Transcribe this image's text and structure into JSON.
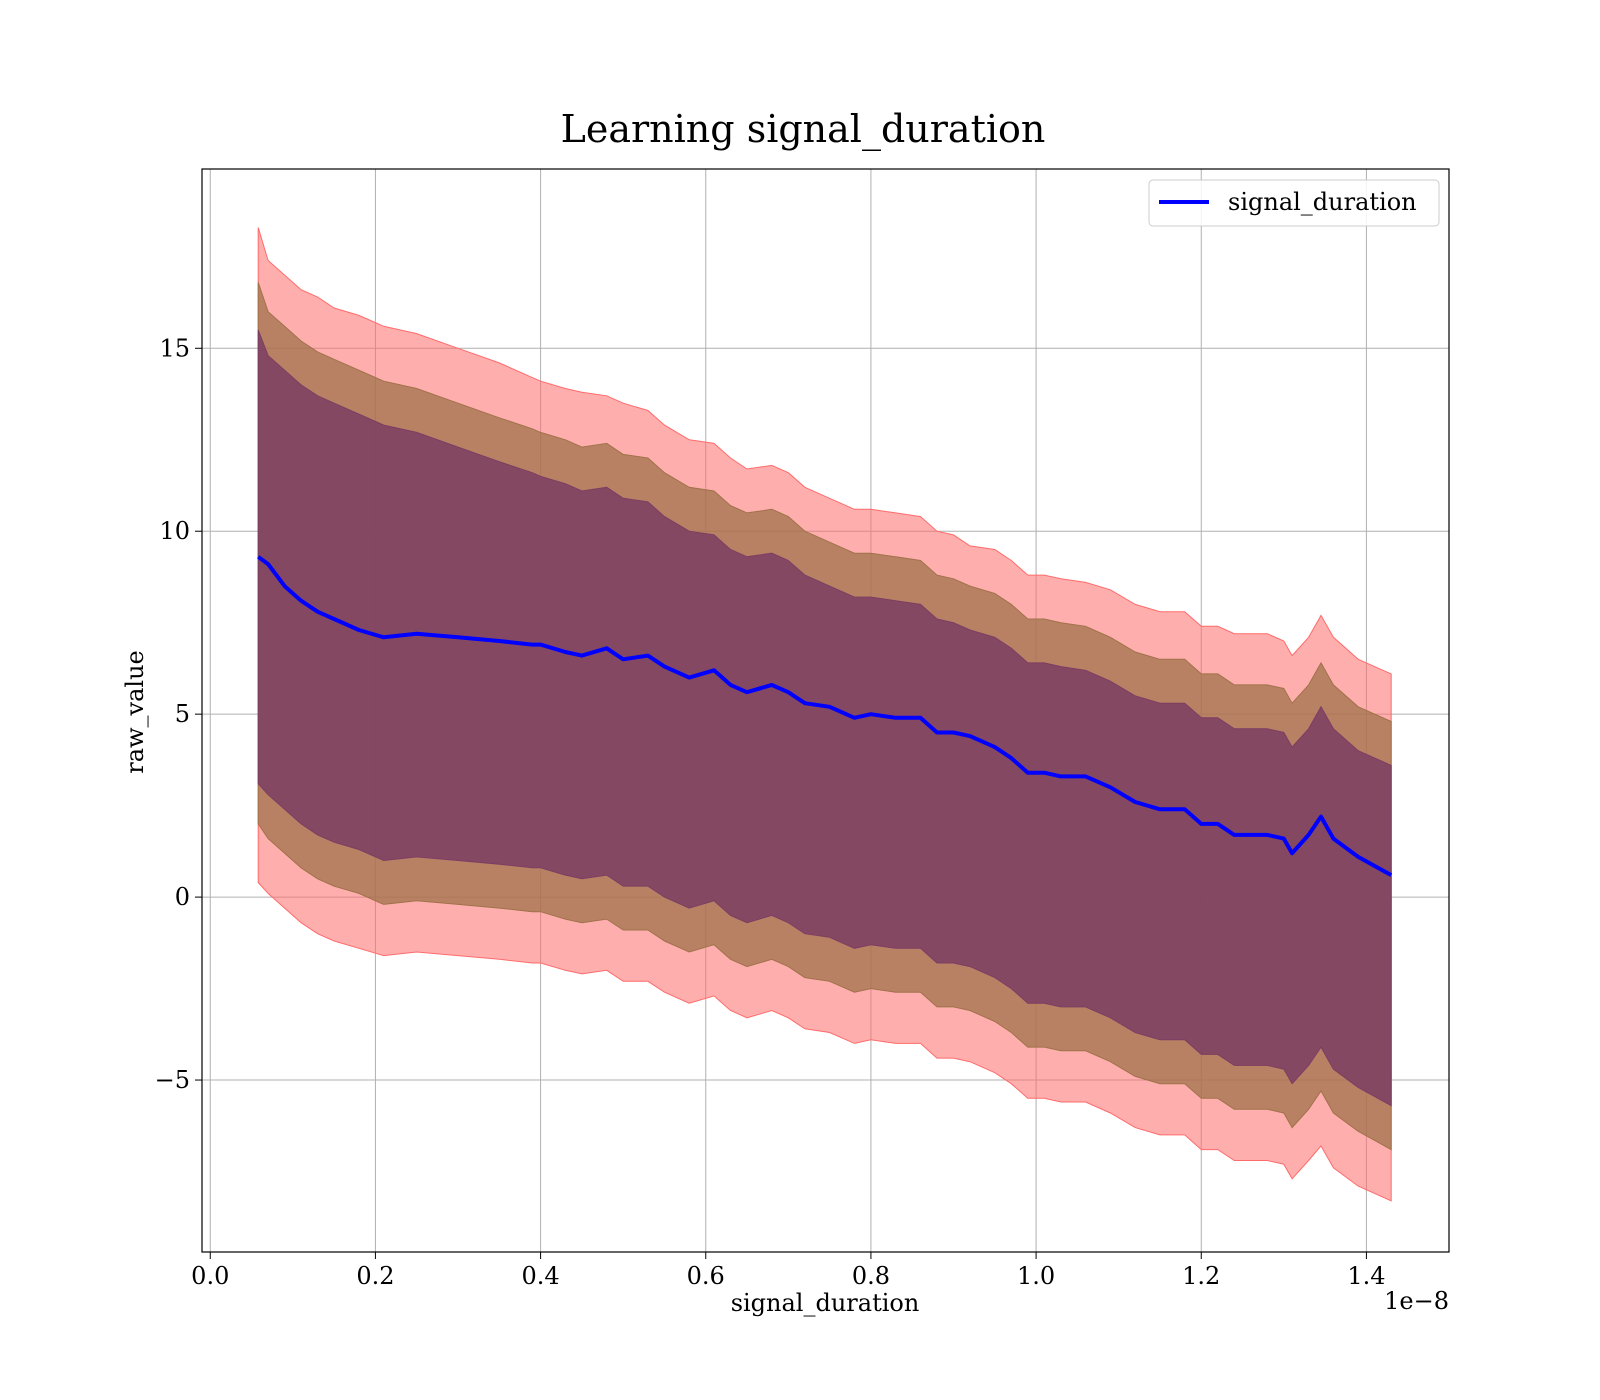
{
  "chart_data": {
    "type": "line",
    "title": "Learning signal_duration",
    "xlabel": "signal_duration",
    "ylabel": "raw_value",
    "x_offset_text": "1e−8",
    "x_scale_factor": 1e-08,
    "xlim": [
      -0.01,
      1.5
    ],
    "ylim": [
      -9.7,
      19.9
    ],
    "x_ticks": [
      0.0,
      0.2,
      0.4,
      0.6,
      0.8,
      1.0,
      1.2,
      1.4
    ],
    "x_tick_labels": [
      "0.0",
      "0.2",
      "0.4",
      "0.6",
      "0.8",
      "1.0",
      "1.2",
      "1.4"
    ],
    "y_ticks": [
      -5,
      0,
      5,
      10,
      15
    ],
    "y_tick_labels": [
      "−5",
      "0",
      "5",
      "10",
      "15"
    ],
    "grid": true,
    "legend_position": "top-right",
    "colors": {
      "line": "#0000ff",
      "band_outer": "#ff6b6b",
      "band_middle": "#a0724a",
      "band_inner": "#7b3e63"
    },
    "series": [
      {
        "name": "signal_duration",
        "x": [
          0.058,
          0.07,
          0.09,
          0.11,
          0.13,
          0.15,
          0.18,
          0.21,
          0.25,
          0.3,
          0.35,
          0.39,
          0.4,
          0.43,
          0.45,
          0.48,
          0.5,
          0.53,
          0.55,
          0.58,
          0.61,
          0.63,
          0.65,
          0.68,
          0.7,
          0.72,
          0.75,
          0.78,
          0.8,
          0.83,
          0.86,
          0.88,
          0.9,
          0.92,
          0.95,
          0.97,
          0.99,
          1.01,
          1.03,
          1.06,
          1.09,
          1.12,
          1.15,
          1.18,
          1.2,
          1.22,
          1.24,
          1.28,
          1.3,
          1.31,
          1.33,
          1.345,
          1.36,
          1.39,
          1.43
        ],
        "values": [
          9.3,
          9.1,
          8.5,
          8.1,
          7.8,
          7.6,
          7.3,
          7.1,
          7.2,
          7.1,
          7.0,
          6.9,
          6.9,
          6.7,
          6.6,
          6.8,
          6.5,
          6.6,
          6.3,
          6.0,
          6.2,
          5.8,
          5.6,
          5.8,
          5.6,
          5.3,
          5.2,
          4.9,
          5.0,
          4.9,
          4.9,
          4.5,
          4.5,
          4.4,
          4.1,
          3.8,
          3.4,
          3.4,
          3.3,
          3.3,
          3.0,
          2.6,
          2.4,
          2.4,
          2.0,
          2.0,
          1.7,
          1.7,
          1.6,
          1.2,
          1.7,
          2.2,
          1.6,
          1.1,
          0.6
        ]
      }
    ],
    "bands": [
      {
        "level": "outer",
        "upper": [
          18.3,
          17.4,
          17.0,
          16.6,
          16.4,
          16.1,
          15.9,
          15.6,
          15.4,
          15.0,
          14.6,
          14.2,
          14.1,
          13.9,
          13.8,
          13.7,
          13.5,
          13.3,
          12.9,
          12.5,
          12.4,
          12.0,
          11.7,
          11.8,
          11.6,
          11.2,
          10.9,
          10.6,
          10.6,
          10.5,
          10.4,
          10.0,
          9.9,
          9.6,
          9.5,
          9.2,
          8.8,
          8.8,
          8.7,
          8.6,
          8.4,
          8.0,
          7.8,
          7.8,
          7.4,
          7.4,
          7.2,
          7.2,
          7.0,
          6.6,
          7.1,
          7.7,
          7.1,
          6.5,
          6.1
        ],
        "lower": [
          0.4,
          0.1,
          -0.3,
          -0.7,
          -1.0,
          -1.2,
          -1.4,
          -1.6,
          -1.5,
          -1.6,
          -1.7,
          -1.8,
          -1.8,
          -2.0,
          -2.1,
          -2.0,
          -2.3,
          -2.3,
          -2.6,
          -2.9,
          -2.7,
          -3.1,
          -3.3,
          -3.1,
          -3.3,
          -3.6,
          -3.7,
          -4.0,
          -3.9,
          -4.0,
          -4.0,
          -4.4,
          -4.4,
          -4.5,
          -4.8,
          -5.1,
          -5.5,
          -5.5,
          -5.6,
          -5.6,
          -5.9,
          -6.3,
          -6.5,
          -6.5,
          -6.9,
          -6.9,
          -7.2,
          -7.2,
          -7.3,
          -7.7,
          -7.2,
          -6.8,
          -7.4,
          -7.9,
          -8.3
        ]
      },
      {
        "level": "middle",
        "upper": [
          16.8,
          16.0,
          15.6,
          15.2,
          14.9,
          14.7,
          14.4,
          14.1,
          13.9,
          13.5,
          13.1,
          12.8,
          12.7,
          12.5,
          12.3,
          12.4,
          12.1,
          12.0,
          11.6,
          11.2,
          11.1,
          10.7,
          10.5,
          10.6,
          10.4,
          10.0,
          9.7,
          9.4,
          9.4,
          9.3,
          9.2,
          8.8,
          8.7,
          8.5,
          8.3,
          8.0,
          7.6,
          7.6,
          7.5,
          7.4,
          7.1,
          6.7,
          6.5,
          6.5,
          6.1,
          6.1,
          5.8,
          5.8,
          5.7,
          5.3,
          5.8,
          6.4,
          5.8,
          5.2,
          4.8
        ],
        "lower": [
          2.0,
          1.6,
          1.2,
          0.8,
          0.5,
          0.3,
          0.1,
          -0.2,
          -0.1,
          -0.2,
          -0.3,
          -0.4,
          -0.4,
          -0.6,
          -0.7,
          -0.6,
          -0.9,
          -0.9,
          -1.2,
          -1.5,
          -1.3,
          -1.7,
          -1.9,
          -1.7,
          -1.9,
          -2.2,
          -2.3,
          -2.6,
          -2.5,
          -2.6,
          -2.6,
          -3.0,
          -3.0,
          -3.1,
          -3.4,
          -3.7,
          -4.1,
          -4.1,
          -4.2,
          -4.2,
          -4.5,
          -4.9,
          -5.1,
          -5.1,
          -5.5,
          -5.5,
          -5.8,
          -5.8,
          -5.9,
          -6.3,
          -5.8,
          -5.3,
          -5.9,
          -6.4,
          -6.9
        ]
      },
      {
        "level": "inner",
        "upper": [
          15.5,
          14.8,
          14.4,
          14.0,
          13.7,
          13.5,
          13.2,
          12.9,
          12.7,
          12.3,
          11.9,
          11.6,
          11.5,
          11.3,
          11.1,
          11.2,
          10.9,
          10.8,
          10.4,
          10.0,
          9.9,
          9.5,
          9.3,
          9.4,
          9.2,
          8.8,
          8.5,
          8.2,
          8.2,
          8.1,
          8.0,
          7.6,
          7.5,
          7.3,
          7.1,
          6.8,
          6.4,
          6.4,
          6.3,
          6.2,
          5.9,
          5.5,
          5.3,
          5.3,
          4.9,
          4.9,
          4.6,
          4.6,
          4.5,
          4.1,
          4.6,
          5.2,
          4.6,
          4.0,
          3.6
        ],
        "lower": [
          3.1,
          2.8,
          2.4,
          2.0,
          1.7,
          1.5,
          1.3,
          1.0,
          1.1,
          1.0,
          0.9,
          0.8,
          0.8,
          0.6,
          0.5,
          0.6,
          0.3,
          0.3,
          0.0,
          -0.3,
          -0.1,
          -0.5,
          -0.7,
          -0.5,
          -0.7,
          -1.0,
          -1.1,
          -1.4,
          -1.3,
          -1.4,
          -1.4,
          -1.8,
          -1.8,
          -1.9,
          -2.2,
          -2.5,
          -2.9,
          -2.9,
          -3.0,
          -3.0,
          -3.3,
          -3.7,
          -3.9,
          -3.9,
          -4.3,
          -4.3,
          -4.6,
          -4.6,
          -4.7,
          -5.1,
          -4.6,
          -4.1,
          -4.7,
          -5.2,
          -5.7
        ]
      }
    ]
  }
}
